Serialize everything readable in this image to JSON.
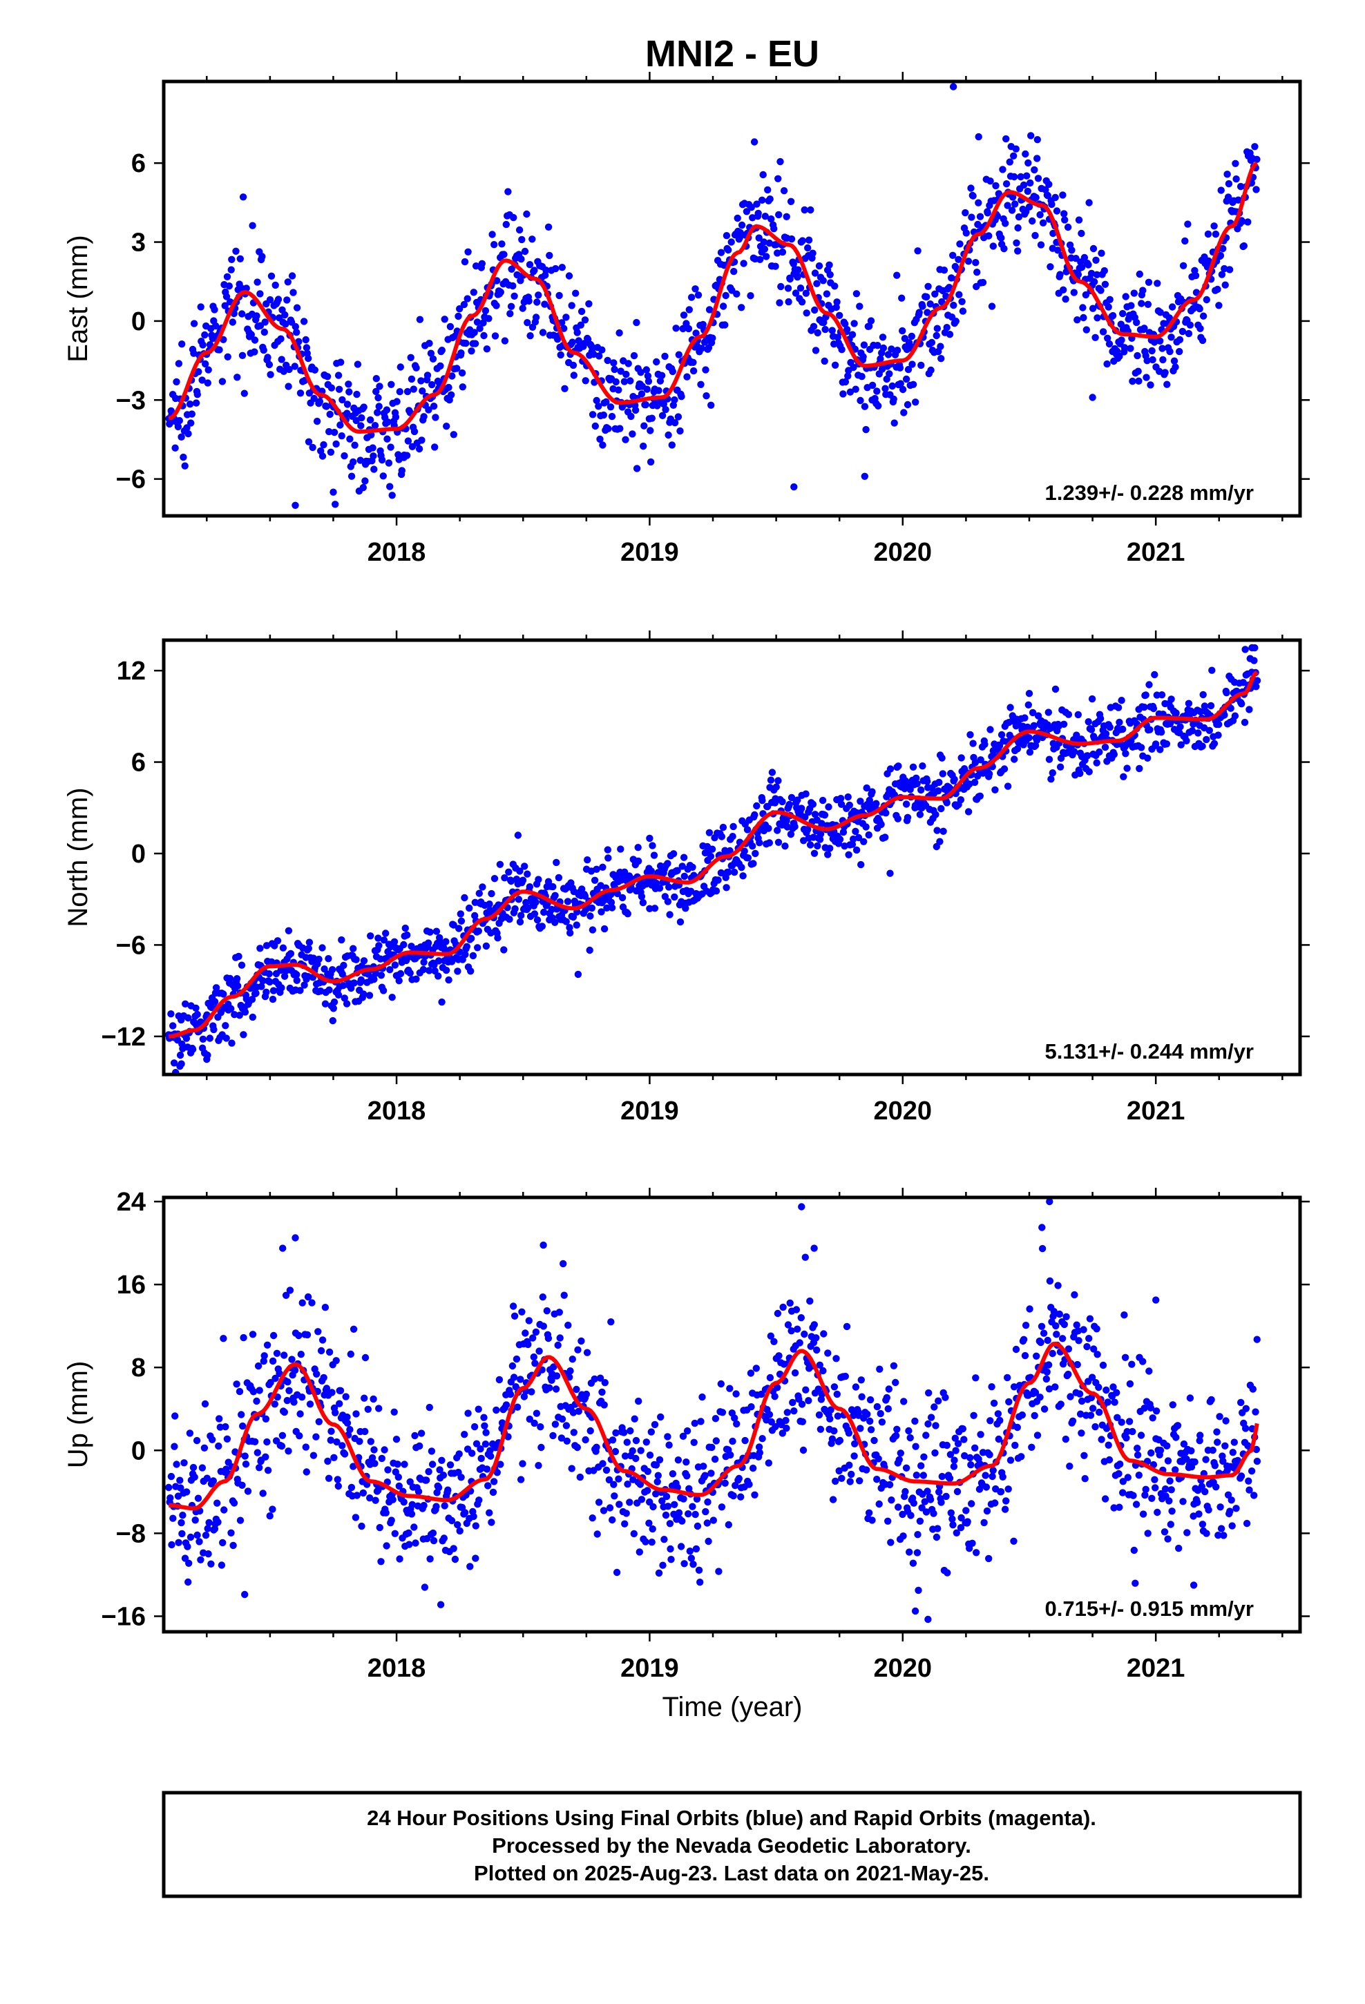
{
  "title": "MNI2 - EU",
  "x_axis_label": "Time (year)",
  "footer": {
    "line1": "24 Hour Positions Using Final Orbits (blue) and Rapid Orbits (magenta).",
    "line2": "Processed by the Nevada Geodetic Laboratory.",
    "line3": "Plotted on 2025-Aug-23. Last data on 2021-May-25."
  },
  "colors": {
    "points": "#0000ff",
    "fit": "#ff0000",
    "frame": "#000000"
  },
  "chart_data": [
    {
      "type": "scatter",
      "ylabel": "East (mm)",
      "rate_label": "1.239+/- 0.228 mm/yr",
      "xlim": [
        2017.08,
        2021.57
      ],
      "ylim": [
        -7.4,
        9.1
      ],
      "xticks": [
        2018,
        2019,
        2020,
        2021
      ],
      "yticks": [
        -6,
        -3,
        0,
        3,
        6
      ],
      "trend_fit": {
        "t": [
          2017.1,
          2017.25,
          2017.4,
          2017.55,
          2017.7,
          2017.85,
          2018.0,
          2018.15,
          2018.3,
          2018.43,
          2018.55,
          2018.7,
          2018.88,
          2019.05,
          2019.2,
          2019.35,
          2019.42,
          2019.55,
          2019.7,
          2019.85,
          2020.0,
          2020.15,
          2020.3,
          2020.42,
          2020.55,
          2020.7,
          2020.87,
          2021.0,
          2021.15,
          2021.3,
          2021.4
        ],
        "y": [
          -3.7,
          -1.2,
          1.1,
          -0.3,
          -2.8,
          -4.2,
          -4.1,
          -2.8,
          0.2,
          2.3,
          1.6,
          -1.2,
          -3.1,
          -2.9,
          -0.6,
          2.6,
          3.6,
          2.9,
          0.3,
          -1.7,
          -1.5,
          0.5,
          3.3,
          4.9,
          4.4,
          1.5,
          -0.5,
          -0.6,
          0.8,
          3.6,
          6.0
        ]
      },
      "points_scatter": 1.1,
      "outliers": [
        [
          2017.6,
          -7.0
        ],
        [
          2017.75,
          -6.5
        ],
        [
          2018.95,
          -5.6
        ],
        [
          2019.57,
          -6.3
        ],
        [
          2019.85,
          -5.9
        ],
        [
          2020.2,
          8.9
        ],
        [
          2020.3,
          7.0
        ],
        [
          2020.75,
          -2.9
        ]
      ]
    },
    {
      "type": "scatter",
      "ylabel": "North (mm)",
      "rate_label": "5.131+/- 0.244 mm/yr",
      "xlim": [
        2017.08,
        2021.57
      ],
      "ylim": [
        -14.5,
        14.0
      ],
      "xticks": [
        2018,
        2019,
        2020,
        2021
      ],
      "yticks": [
        -12,
        -6,
        0,
        6,
        12
      ],
      "trend_fit": {
        "t": [
          2017.1,
          2017.2,
          2017.35,
          2017.5,
          2017.6,
          2017.75,
          2017.9,
          2018.05,
          2018.2,
          2018.35,
          2018.5,
          2018.7,
          2018.85,
          2019.0,
          2019.15,
          2019.3,
          2019.5,
          2019.7,
          2019.85,
          2020.0,
          2020.15,
          2020.3,
          2020.5,
          2020.7,
          2020.85,
          2021.0,
          2021.2,
          2021.35,
          2021.4
        ],
        "y": [
          -12.0,
          -11.6,
          -9.4,
          -7.4,
          -7.3,
          -8.4,
          -7.6,
          -6.5,
          -6.6,
          -4.3,
          -2.5,
          -3.6,
          -2.4,
          -1.5,
          -1.9,
          -0.2,
          2.7,
          1.6,
          2.5,
          3.7,
          3.6,
          5.6,
          8.0,
          7.2,
          7.4,
          8.9,
          8.8,
          10.5,
          11.9
        ]
      },
      "points_scatter": 1.1,
      "outliers": [
        [
          2017.15,
          -13.8
        ],
        [
          2017.25,
          -13.5
        ],
        [
          2018.48,
          1.2
        ],
        [
          2019.0,
          1.0
        ],
        [
          2019.95,
          -1.3
        ],
        [
          2020.5,
          10.5
        ],
        [
          2021.38,
          13.5
        ]
      ]
    },
    {
      "type": "scatter",
      "ylabel": "Up (mm)",
      "rate_label": "0.715+/- 0.915 mm/yr",
      "xlim": [
        2017.08,
        2021.57
      ],
      "ylim": [
        -17.5,
        24.4
      ],
      "xticks": [
        2018,
        2019,
        2020,
        2021
      ],
      "yticks": [
        -16,
        -8,
        0,
        8,
        16,
        24
      ],
      "trend_fit": {
        "t": [
          2017.1,
          2017.2,
          2017.32,
          2017.45,
          2017.6,
          2017.75,
          2017.9,
          2018.05,
          2018.2,
          2018.35,
          2018.5,
          2018.6,
          2018.75,
          2018.9,
          2019.05,
          2019.2,
          2019.35,
          2019.5,
          2019.6,
          2019.75,
          2019.9,
          2020.05,
          2020.2,
          2020.35,
          2020.5,
          2020.6,
          2020.75,
          2020.9,
          2021.05,
          2021.2,
          2021.3,
          2021.38,
          2021.4
        ],
        "y": [
          -5.3,
          -5.6,
          -3.0,
          3.5,
          8.3,
          2.5,
          -3.0,
          -4.4,
          -4.8,
          -2.8,
          6.0,
          9.0,
          4.0,
          -2.0,
          -3.8,
          -4.3,
          -1.5,
          6.5,
          9.6,
          4.0,
          -1.8,
          -3.0,
          -3.2,
          -1.5,
          6.5,
          10.3,
          5.5,
          -1.0,
          -2.3,
          -2.6,
          -2.4,
          0.0,
          2.6
        ]
      },
      "points_scatter": 4.0,
      "outliers": [
        [
          2017.4,
          -13.9
        ],
        [
          2017.55,
          19.5
        ],
        [
          2017.6,
          20.5
        ],
        [
          2018.58,
          19.8
        ],
        [
          2019.6,
          23.5
        ],
        [
          2019.65,
          19.5
        ],
        [
          2020.05,
          -15.5
        ],
        [
          2020.1,
          -16.3
        ],
        [
          2020.58,
          24.0
        ],
        [
          2020.55,
          21.5
        ],
        [
          2021.0,
          14.5
        ],
        [
          2021.15,
          -13.0
        ],
        [
          2021.4,
          10.7
        ]
      ]
    }
  ]
}
